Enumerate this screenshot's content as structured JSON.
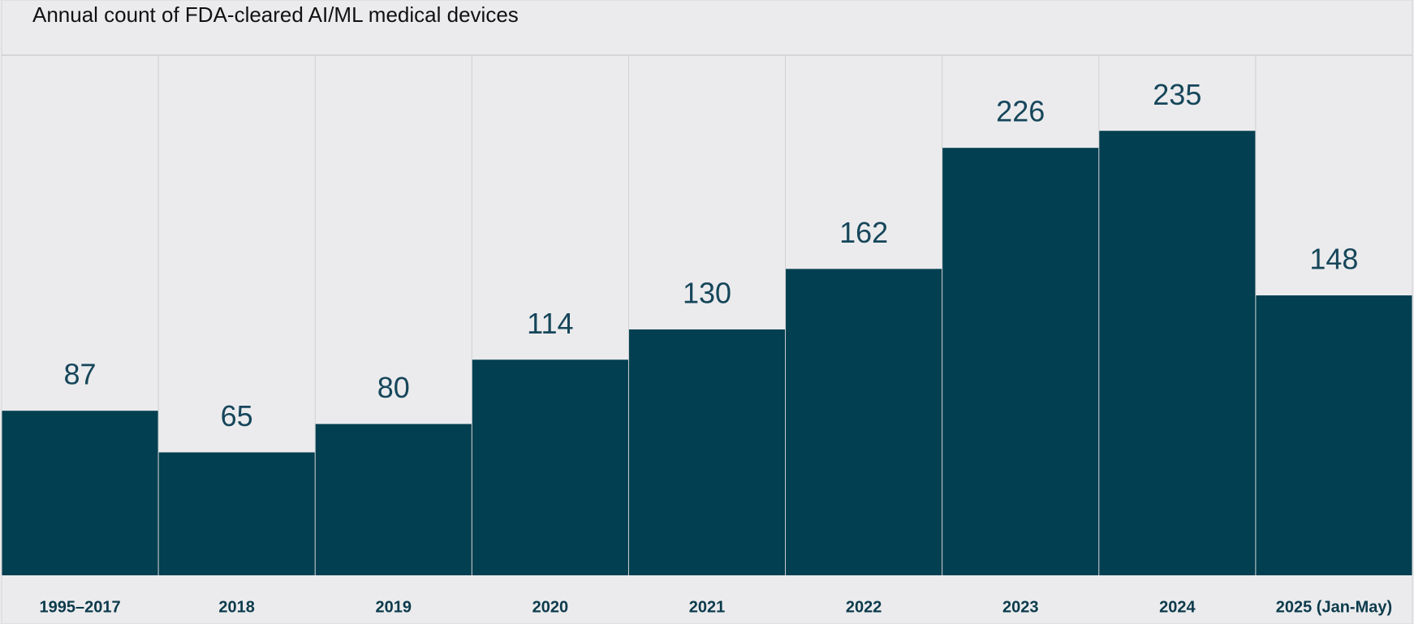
{
  "chart_data": {
    "type": "bar",
    "title": "Annual count of FDA-cleared AI/ML medical devices",
    "categories": [
      "1995–2017",
      "2018",
      "2019",
      "2020",
      "2021",
      "2022",
      "2023",
      "2024",
      "2025 (Jan-May)"
    ],
    "values": [
      87,
      65,
      80,
      114,
      130,
      162,
      226,
      235,
      148
    ],
    "color": "#023f50",
    "ylim": [
      0,
      275
    ]
  }
}
